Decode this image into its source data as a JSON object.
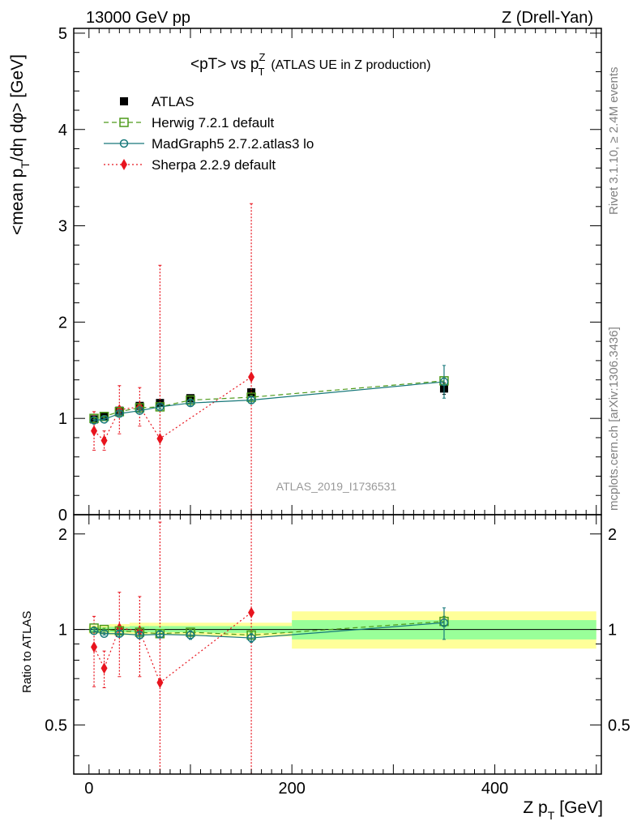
{
  "header": {
    "left": "13000 GeV pp",
    "right": "Z (Drell-Yan)"
  },
  "side_text": {
    "rivet": "Rivet 3.1.10, ≥ 2.4M events",
    "mcplots": "mcplots.cern.ch [arXiv:1306.3436]"
  },
  "watermark": "ATLAS_2019_I1736531",
  "chart_data": [
    {
      "type": "scatter",
      "title": "<pT> vs p",
      "title_sup": "Z",
      "title_sub": "T",
      "title_suffix": "(ATLAS UE in Z production)",
      "ylabel": "<mean p",
      "ylabel_sub": "T",
      "ylabel_suffix": "/dη dφ> [GeV]",
      "xlim": [
        -15,
        505
      ],
      "ylim": [
        0,
        5.05
      ],
      "yticks": [
        0,
        1,
        2,
        3,
        4,
        5
      ],
      "ytick_labels": [
        "0",
        "1",
        "2",
        "3",
        "4",
        "5"
      ],
      "x_bins": [
        5,
        15,
        30,
        50,
        70,
        100,
        160,
        350
      ],
      "series": [
        {
          "name": "ATLAS",
          "color": "#000000",
          "marker": "square-filled",
          "y": [
            0.99,
            1.02,
            1.08,
            1.13,
            1.16,
            1.21,
            1.27,
            1.31
          ],
          "err": [
            0.02,
            0.02,
            0.03,
            0.03,
            0.03,
            0.03,
            0.04,
            0.06
          ]
        },
        {
          "name": "Herwig 7.2.1 default",
          "color": "#4d9a1a",
          "marker": "square-open",
          "line": "dashed",
          "y": [
            1.0,
            1.02,
            1.07,
            1.11,
            1.12,
            1.19,
            1.22,
            1.39
          ],
          "err": [
            0.01,
            0.01,
            0.02,
            0.02,
            0.02,
            0.02,
            0.02,
            0.03
          ]
        },
        {
          "name": "MadGraph5 2.7.2.atlas3 lo",
          "color": "#17787a",
          "marker": "circle-open",
          "line": "solid",
          "y": [
            0.98,
            0.99,
            1.05,
            1.08,
            1.12,
            1.16,
            1.19,
            1.38
          ],
          "err": [
            0.01,
            0.01,
            0.02,
            0.02,
            0.02,
            0.03,
            0.03,
            0.17
          ]
        },
        {
          "name": "Sherpa 2.2.9 default",
          "color": "#e8141e",
          "marker": "diamond-filled",
          "line": "dotted",
          "y": [
            0.87,
            0.77,
            1.09,
            1.12,
            0.79,
            null,
            1.43,
            null
          ],
          "err": [
            0.2,
            0.1,
            0.25,
            0.2,
            1.8,
            null,
            1.8,
            null
          ]
        }
      ]
    },
    {
      "type": "scatter",
      "title": "",
      "xlabel": "Z p",
      "xlabel_sub": "T",
      "xlabel_suffix": "[GeV]",
      "ylabel": "Ratio to ATLAS",
      "xlim": [
        -15,
        505
      ],
      "ylim": [
        0.35,
        2.3
      ],
      "log_y": true,
      "xticks": [
        0,
        200,
        400
      ],
      "xtick_labels": [
        "0",
        "200",
        "400"
      ],
      "yticks": [
        0.5,
        1,
        2
      ],
      "ytick_labels": [
        "0.5",
        "1",
        "2"
      ],
      "bands": [
        {
          "x0": 0,
          "x1": 10,
          "yellow": [
            0.97,
            1.03
          ],
          "green": [
            0.985,
            1.015
          ]
        },
        {
          "x0": 10,
          "x1": 20,
          "yellow": [
            0.97,
            1.03
          ],
          "green": [
            0.985,
            1.015
          ]
        },
        {
          "x0": 20,
          "x1": 40,
          "yellow": [
            0.96,
            1.04
          ],
          "green": [
            0.98,
            1.02
          ]
        },
        {
          "x0": 40,
          "x1": 60,
          "yellow": [
            0.96,
            1.05
          ],
          "green": [
            0.98,
            1.025
          ]
        },
        {
          "x0": 60,
          "x1": 80,
          "yellow": [
            0.96,
            1.05
          ],
          "green": [
            0.98,
            1.025
          ]
        },
        {
          "x0": 80,
          "x1": 120,
          "yellow": [
            0.96,
            1.05
          ],
          "green": [
            0.98,
            1.025
          ]
        },
        {
          "x0": 120,
          "x1": 200,
          "yellow": [
            0.95,
            1.05
          ],
          "green": [
            0.975,
            1.025
          ]
        },
        {
          "x0": 200,
          "x1": 500,
          "yellow": [
            0.87,
            1.14
          ],
          "green": [
            0.93,
            1.07
          ]
        }
      ],
      "series": [
        {
          "name": "Herwig 7.2.1 default",
          "y": [
            1.01,
            1.0,
            0.99,
            0.98,
            0.97,
            0.98,
            0.96,
            1.06
          ],
          "err": [
            0.01,
            0.01,
            0.02,
            0.02,
            0.02,
            0.02,
            0.02,
            0.04
          ]
        },
        {
          "name": "MadGraph5 2.7.2.atlas3 lo",
          "y": [
            0.99,
            0.97,
            0.97,
            0.96,
            0.965,
            0.96,
            0.94,
            1.05
          ],
          "err": [
            0.01,
            0.01,
            0.02,
            0.02,
            0.02,
            0.03,
            0.03,
            0.12
          ]
        },
        {
          "name": "Sherpa 2.2.9 default",
          "y": [
            0.88,
            0.755,
            1.01,
            0.99,
            0.68,
            null,
            1.13,
            null
          ],
          "err": [
            0.22,
            0.1,
            0.3,
            0.28,
            1.5,
            null,
            1.5,
            null
          ]
        }
      ]
    }
  ]
}
